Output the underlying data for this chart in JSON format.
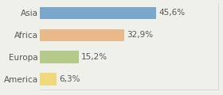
{
  "categories": [
    "Asia",
    "Africa",
    "Europa",
    "America"
  ],
  "values": [
    45.6,
    32.9,
    15.2,
    6.3
  ],
  "labels": [
    "45,6%",
    "32,9%",
    "15,2%",
    "6,3%"
  ],
  "bar_colors": [
    "#7ba7cc",
    "#e8b98a",
    "#b5c98a",
    "#f0d97a"
  ],
  "background_color": "#f0f0eb",
  "xlim": [
    0,
    70
  ],
  "bar_height": 0.55,
  "label_fontsize": 7.5,
  "category_fontsize": 7.5
}
